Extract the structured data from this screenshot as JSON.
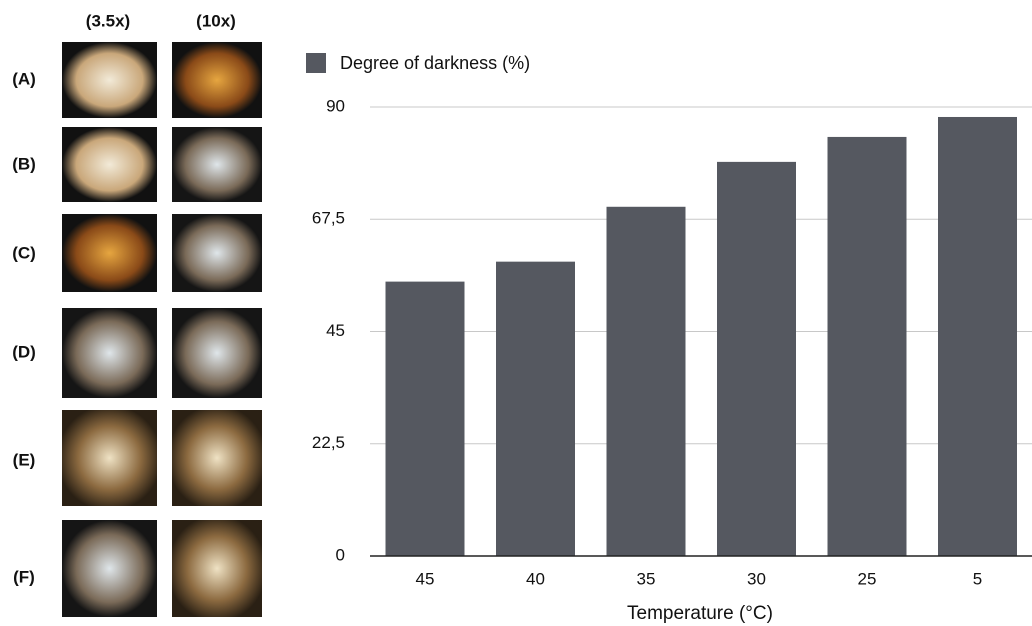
{
  "panel": {
    "columns": [
      "(3.5x)",
      "(10x)"
    ],
    "rows": [
      "(A)",
      "(B)",
      "(C)",
      "(D)",
      "(E)",
      "(F)"
    ]
  },
  "chart_data": {
    "type": "bar",
    "x_label": "Temperature (°C)",
    "categories": [
      "45",
      "40",
      "35",
      "30",
      "25",
      "5"
    ],
    "series": [
      {
        "name": "Degree of darkness (%)",
        "color": "#555860",
        "values": [
          55,
          59,
          70,
          79,
          84,
          88
        ]
      }
    ],
    "ylim": [
      0,
      90
    ],
    "yticks": [
      0,
      {
        "value": 22.5,
        "label": "22,5"
      },
      45,
      {
        "value": 67.5,
        "label": "67,5"
      },
      90
    ],
    "grid": true
  }
}
